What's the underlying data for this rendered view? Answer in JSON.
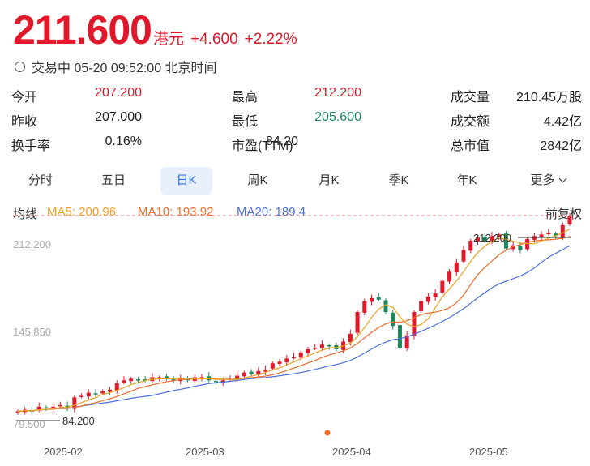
{
  "quote": {
    "price": "211.600",
    "currency": "港元",
    "change": "+4.600",
    "change_pct": "+2.22%",
    "status": "交易中 05-20 09:52:00 北京时间"
  },
  "stats": [
    [
      {
        "label": "今开",
        "value": "207.200",
        "color": "red"
      },
      {
        "label": "最高",
        "value": "212.200",
        "color": "red"
      },
      {
        "label": "成交量",
        "value": "210.45万股",
        "color": "black"
      }
    ],
    [
      {
        "label": "昨收",
        "value": "207.000",
        "color": "black"
      },
      {
        "label": "最低",
        "value": "205.600",
        "color": "green"
      },
      {
        "label": "成交额",
        "value": "4.42亿",
        "color": "black"
      }
    ],
    [
      {
        "label": "换手率",
        "value": "0.16%",
        "color": "black"
      },
      {
        "label": "市盈(TTM)",
        "value": "84.20",
        "color": "black"
      },
      {
        "label": "总市值",
        "value": "2842亿",
        "color": "black"
      }
    ]
  ],
  "tabs": [
    "分时",
    "五日",
    "日K",
    "周K",
    "月K",
    "季K",
    "年K",
    "更多"
  ],
  "active_tab": "日K",
  "ma": {
    "label": "均线",
    "ma5": "MA5: 200.96",
    "ma10": "MA10: 193.92",
    "ma20": "MA20: 189.4",
    "adjust": "前复权"
  },
  "colors": {
    "up": "#e0182a",
    "down": "#1a8a5a",
    "ma5": "#f0a020",
    "ma10": "#f06a28",
    "ma20": "#4a6fe0",
    "active_tab_bg": "#e9effb"
  },
  "chart_data": {
    "type": "candlestick",
    "y_ticks": [
      "212.200",
      "145.850",
      "79.500"
    ],
    "x_ticks": [
      "2025-02",
      "2025-03",
      "2025-04",
      "2025-05"
    ],
    "ylim": [
      79.5,
      212.2
    ],
    "max_label": "212.200",
    "min_label": "84.200",
    "close_series": [
      86,
      87,
      86,
      89,
      88,
      89,
      90,
      88,
      95,
      96,
      98,
      97,
      99,
      100,
      104,
      106,
      107,
      106,
      106,
      108,
      108,
      107,
      106,
      107,
      106,
      108,
      108,
      106,
      105,
      106,
      107,
      109,
      111,
      110,
      112,
      113,
      117,
      118,
      120,
      121,
      124,
      126,
      127,
      129,
      128,
      126,
      131,
      136,
      150,
      157,
      159,
      158,
      150,
      141,
      127,
      135,
      150,
      157,
      160,
      162,
      170,
      176,
      182,
      190,
      196,
      198,
      196,
      199,
      200,
      191,
      193,
      190,
      197,
      199,
      200,
      201,
      199,
      206,
      211.6
    ]
  }
}
